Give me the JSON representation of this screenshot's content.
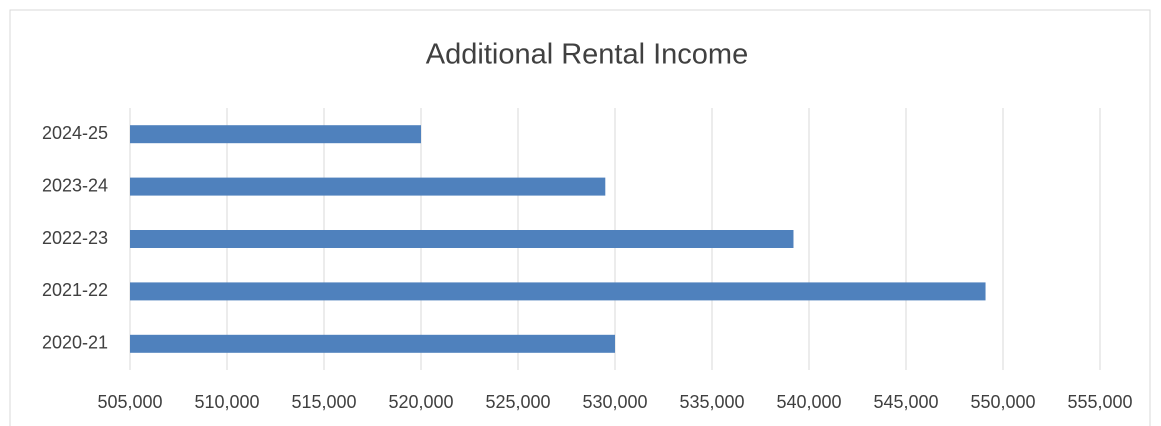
{
  "chart_data": {
    "type": "hbar",
    "title": "Additional Rental Income",
    "categories": [
      "2024-25",
      "2023-24",
      "2022-23",
      "2021-22",
      "2020-21"
    ],
    "values": [
      520000,
      529500,
      539200,
      549100,
      530000
    ],
    "color": "#4f81bd",
    "xlim": [
      505000,
      555000
    ],
    "xticks": [
      {
        "value": 505000,
        "label": "505,000"
      },
      {
        "value": 510000,
        "label": "510,000"
      },
      {
        "value": 515000,
        "label": "515,000"
      },
      {
        "value": 520000,
        "label": "520,000"
      },
      {
        "value": 525000,
        "label": "525,000"
      },
      {
        "value": 530000,
        "label": "530,000"
      },
      {
        "value": 535000,
        "label": "535,000"
      },
      {
        "value": 540000,
        "label": "540,000"
      },
      {
        "value": 545000,
        "label": "545,000"
      },
      {
        "value": 550000,
        "label": "550,000"
      },
      {
        "value": 555000,
        "label": "555,000"
      }
    ],
    "grid": true
  }
}
